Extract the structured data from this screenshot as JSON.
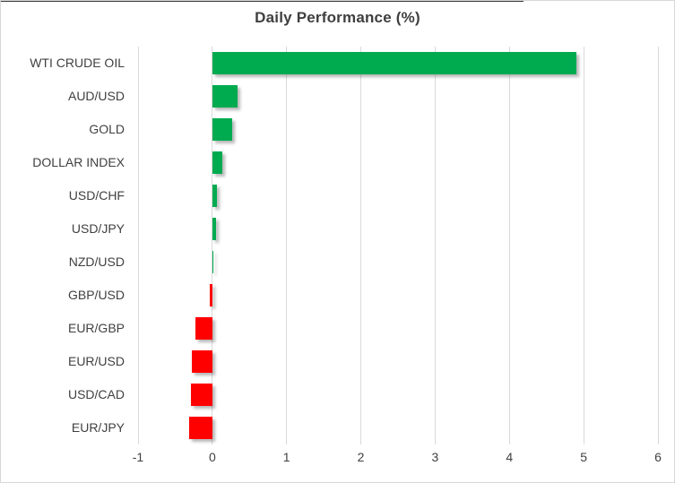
{
  "title": "Daily Performance (%)",
  "chart_data": {
    "type": "bar",
    "orientation": "horizontal",
    "title": "Daily Performance (%)",
    "categories": [
      "WTI CRUDE OIL",
      "AUD/USD",
      "GOLD",
      "DOLLAR INDEX",
      "USD/CHF",
      "USD/JPY",
      "NZD/USD",
      "GBP/USD",
      "EUR/GBP",
      "EUR/USD",
      "USD/CAD",
      "EUR/JPY"
    ],
    "values": [
      4.9,
      0.34,
      0.27,
      0.14,
      0.06,
      0.05,
      0.01,
      -0.03,
      -0.23,
      -0.27,
      -0.29,
      -0.31
    ],
    "xlabel": "",
    "ylabel": "",
    "xlim": [
      -1,
      6
    ],
    "x_ticks": [
      "-1",
      "0",
      "1",
      "2",
      "3",
      "4",
      "5",
      "6"
    ],
    "grid": "vertical-gridlines-on",
    "legend": "none",
    "positive_color": "#00AB50",
    "negative_color": "#FF0000",
    "gridline_color": "#d9d9d9",
    "text_color": "#404040"
  }
}
